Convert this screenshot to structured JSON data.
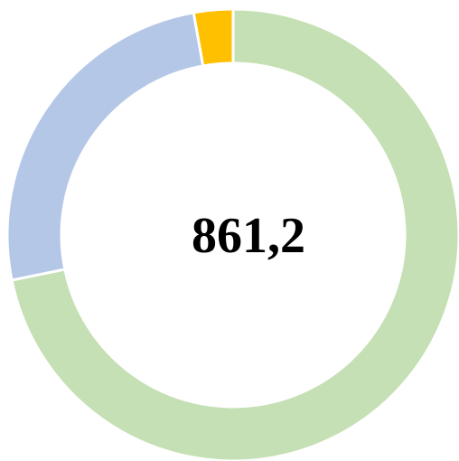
{
  "chart_data": {
    "type": "donut",
    "center_label": "861,2",
    "values": [
      71.8,
      25.4,
      2.8
    ],
    "colors": [
      "#c5e0b4",
      "#b4c7e7",
      "#ffc000"
    ]
  }
}
